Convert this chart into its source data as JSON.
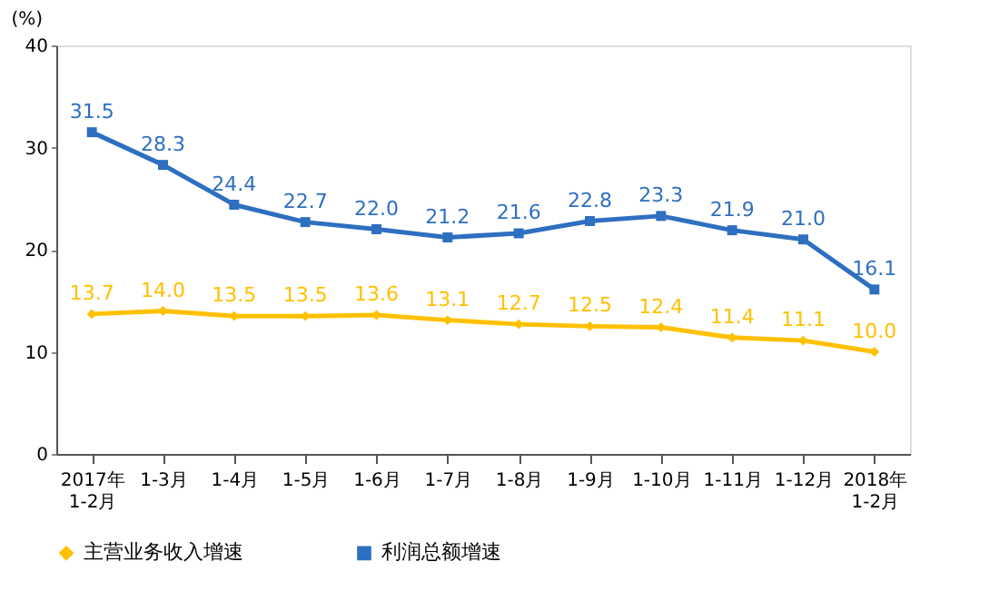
{
  "chart_data": {
    "type": "line",
    "ylabel": "(%)",
    "categories": [
      "2017年\n1-2月",
      "1-3月",
      "1-4月",
      "1-5月",
      "1-6月",
      "1-7月",
      "1-8月",
      "1-9月",
      "1-10月",
      "1-11月",
      "1-12月",
      "2018年\n1-2月"
    ],
    "series": [
      {
        "name": "主营业务收入增速",
        "color": "#ffc000",
        "marker": "diamond",
        "values": [
          13.7,
          14.0,
          13.5,
          13.5,
          13.6,
          13.1,
          12.7,
          12.5,
          12.4,
          11.4,
          11.1,
          10.0
        ],
        "value_labels": [
          "13.7",
          "14.0",
          "13.5",
          "13.5",
          "13.6",
          "13.1",
          "12.7",
          "12.5",
          "12.4",
          "11.4",
          "11.1",
          "10.0"
        ]
      },
      {
        "name": "利润总额增速",
        "color": "#2e6fc0",
        "marker": "square",
        "values": [
          31.5,
          28.3,
          24.4,
          22.7,
          22.0,
          21.2,
          21.6,
          22.8,
          23.3,
          21.9,
          21.0,
          16.1
        ],
        "value_labels": [
          "31.5",
          "28.3",
          "24.4",
          "22.7",
          "22.0",
          "21.2",
          "21.6",
          "22.8",
          "23.3",
          "21.9",
          "21.0",
          "16.1"
        ]
      }
    ],
    "ylim": [
      0,
      40
    ],
    "yticks": [
      0,
      10,
      20,
      30,
      40
    ],
    "grid": false,
    "legend": "bottom",
    "line_style": "solid"
  }
}
